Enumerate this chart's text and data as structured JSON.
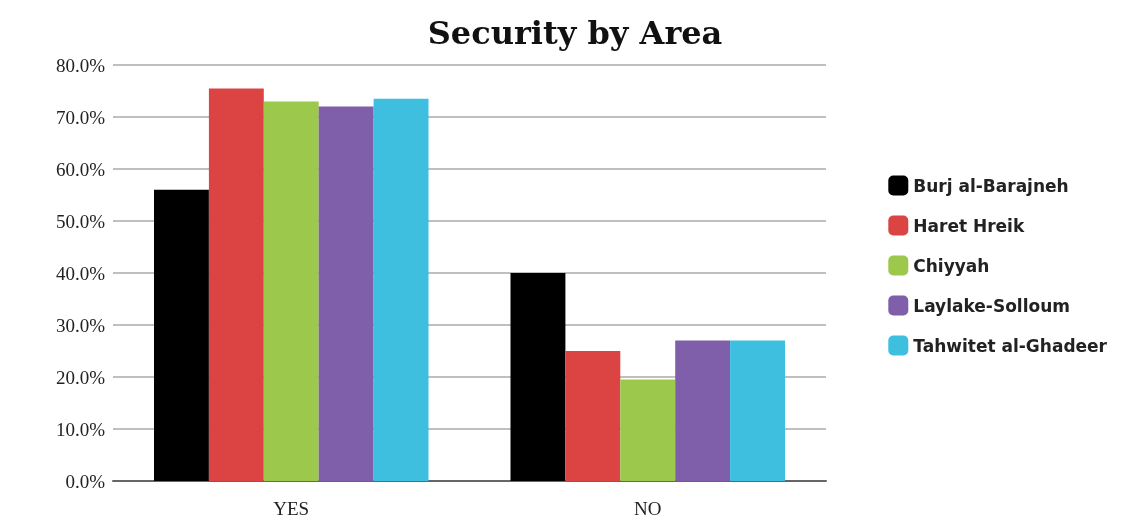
{
  "chart_data": {
    "type": "bar",
    "title": "Security by Area",
    "categories": [
      "YES",
      "NO"
    ],
    "series": [
      {
        "name": "Burj al-Barajneh",
        "color": "#000000",
        "values": [
          56,
          40
        ]
      },
      {
        "name": "Haret Hreik",
        "color": "#dc4444",
        "values": [
          75.5,
          25
        ]
      },
      {
        "name": "Chiyyah",
        "color": "#9cc84c",
        "values": [
          73,
          19.5
        ]
      },
      {
        "name": "Laylake-Solloum",
        "color": "#7f5fa9",
        "values": [
          72,
          27
        ]
      },
      {
        "name": "Tahwitet al-Ghadeer",
        "color": "#3fbfdf",
        "values": [
          73.5,
          27
        ]
      }
    ],
    "ylim": [
      0,
      80
    ],
    "yticks": [
      {
        "value": 0,
        "label": "0.0%"
      },
      {
        "value": 10,
        "label": "10.0%"
      },
      {
        "value": 20,
        "label": "20.0%"
      },
      {
        "value": 30,
        "label": "30.0%"
      },
      {
        "value": 40,
        "label": "40.0%"
      },
      {
        "value": 50,
        "label": "50.0%"
      },
      {
        "value": 60,
        "label": "60.0%"
      },
      {
        "value": 70,
        "label": "70.0%"
      },
      {
        "value": 80,
        "label": "80.0%"
      }
    ],
    "grid": "y",
    "legend": "right"
  }
}
